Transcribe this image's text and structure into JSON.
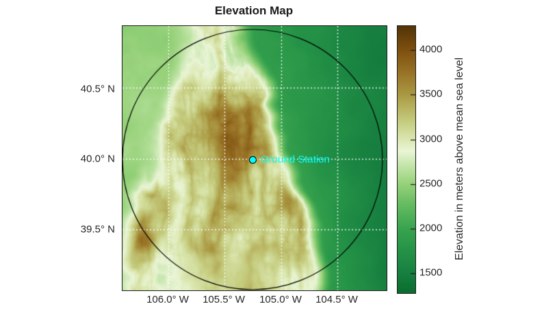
{
  "title": "Elevation Map",
  "map": {
    "y_ticks": [
      "40.5° N",
      "40.0° N",
      "39.5° N"
    ],
    "x_ticks": [
      "106.0° W",
      "105.5° W",
      "105.0° W",
      "104.5° W"
    ],
    "grid_color": "#ffffff",
    "frame_color": "#1a1a1a",
    "coverage_circle": {
      "color": "#000000"
    },
    "ground_station": {
      "label": "Ground Station",
      "marker_color": "#00ffff",
      "marker_edge_color": "#000000"
    }
  },
  "colorbar": {
    "label": "Elevation in meters above mean sea level",
    "ticks": [
      4000,
      3500,
      3000,
      2500,
      2000,
      1500
    ],
    "min": 1280,
    "max": 4270,
    "stops": [
      [
        1280,
        "#0a6e30"
      ],
      [
        1500,
        "#178040"
      ],
      [
        1750,
        "#259347"
      ],
      [
        2000,
        "#39a44f"
      ],
      [
        2250,
        "#62ba60"
      ],
      [
        2500,
        "#97d27a"
      ],
      [
        2700,
        "#c2e5a8"
      ],
      [
        2870,
        "#eaf5d6"
      ],
      [
        3000,
        "#dce8b2"
      ],
      [
        3200,
        "#c6cd80"
      ],
      [
        3500,
        "#ab9a44"
      ],
      [
        3750,
        "#997327"
      ],
      [
        4000,
        "#7f5110"
      ],
      [
        4270,
        "#543508"
      ]
    ]
  }
}
